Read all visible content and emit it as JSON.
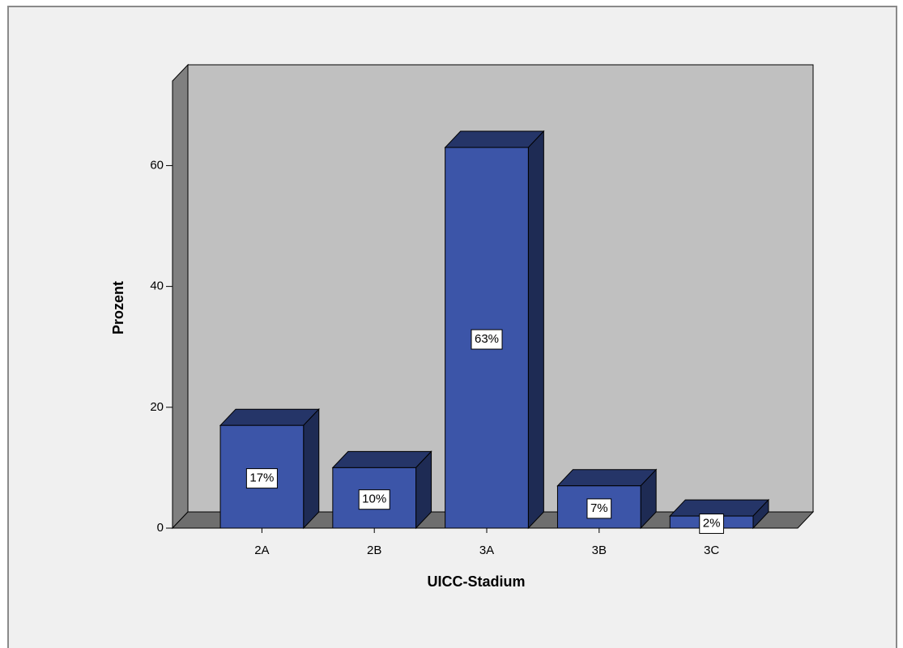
{
  "chart_data": {
    "type": "bar3d",
    "x_label": "UICC-Stadium",
    "y_label": "Prozent",
    "categories": [
      "2A",
      "2B",
      "3A",
      "3B",
      "3C"
    ],
    "values": [
      17,
      10,
      63,
      7,
      2
    ],
    "value_labels": [
      "17%",
      "10%",
      "63%",
      "7%",
      "2%"
    ],
    "color": "#3c55a8",
    "ylim": [
      0,
      74
    ],
    "yticks": [
      0,
      20,
      40,
      60
    ]
  }
}
